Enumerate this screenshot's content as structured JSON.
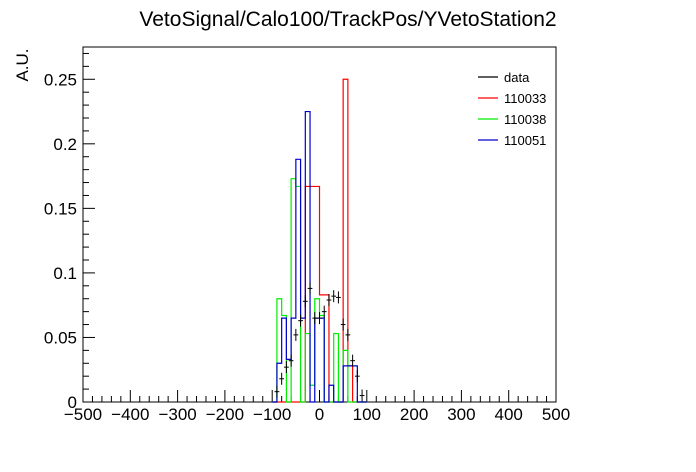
{
  "chart_data": {
    "type": "histogram",
    "title": "VetoSignal/Calo100/TrackPos/YVetoStation2",
    "xlabel": "",
    "ylabel": "A.U.",
    "xlim": [
      -500,
      500
    ],
    "ylim": [
      0,
      0.275
    ],
    "xticks": [
      -500,
      -400,
      -300,
      -200,
      -100,
      0,
      100,
      200,
      300,
      400,
      500
    ],
    "xtick_labels": [
      "−500",
      "−400",
      "−300",
      "−200",
      "−100",
      "0",
      "100",
      "200",
      "300",
      "400",
      "500"
    ],
    "yticks": [
      0,
      0.05,
      0.1,
      0.15,
      0.2,
      0.25
    ],
    "ytick_labels": [
      "0",
      "0.05",
      "0.1",
      "0.15",
      "0.2",
      "0.25"
    ],
    "grid": false,
    "legend_placement": "top-right",
    "series": [
      {
        "name": "data",
        "color": "#000000",
        "style": "points",
        "bin_width": 10,
        "x": [
          -90,
          -80,
          -70,
          -60,
          -50,
          -40,
          -30,
          -20,
          -10,
          0,
          10,
          20,
          30,
          40,
          50,
          60,
          70,
          80,
          90
        ],
        "y": [
          0.008,
          0.018,
          0.027,
          0.032,
          0.052,
          0.063,
          0.078,
          0.088,
          0.065,
          0.065,
          0.07,
          0.079,
          0.082,
          0.081,
          0.06,
          0.052,
          0.032,
          0.02,
          0.005
        ]
      },
      {
        "name": "110033",
        "color": "#ff0000",
        "style": "step",
        "edges": [
          -100,
          -90,
          -80,
          -70,
          -60,
          -50,
          -40,
          -30,
          -20,
          -10,
          0,
          10,
          20,
          30,
          40,
          50,
          60,
          70,
          80,
          90,
          100
        ],
        "values": [
          0,
          0,
          0,
          0,
          0,
          0,
          0,
          0.167,
          0.167,
          0.167,
          0.083,
          0.083,
          0,
          0,
          0,
          0.25,
          0.028,
          0,
          0,
          0
        ]
      },
      {
        "name": "110038",
        "color": "#00ee00",
        "style": "step",
        "edges": [
          -100,
          -90,
          -80,
          -70,
          -60,
          -50,
          -40,
          -30,
          -20,
          -10,
          0,
          10,
          20,
          30,
          40,
          50,
          60,
          70,
          80,
          90,
          100
        ],
        "values": [
          0,
          0.08,
          0.067,
          0,
          0.173,
          0.167,
          0,
          0.053,
          0.013,
          0.08,
          0.067,
          0,
          0,
          0.053,
          0,
          0.04,
          0,
          0,
          0,
          0
        ]
      },
      {
        "name": "110051",
        "color": "#0000cc",
        "style": "step",
        "edges": [
          -100,
          -90,
          -80,
          -70,
          -60,
          -50,
          -40,
          -30,
          -20,
          -10,
          0,
          10,
          20,
          30,
          40,
          50,
          60,
          70,
          80,
          90,
          100
        ],
        "values": [
          0,
          0.03,
          0.065,
          0.033,
          0.065,
          0.188,
          0.065,
          0.225,
          0.0,
          0.065,
          0.065,
          0,
          0.013,
          0,
          0,
          0.028,
          0.028,
          0.028,
          0,
          0
        ]
      }
    ]
  }
}
